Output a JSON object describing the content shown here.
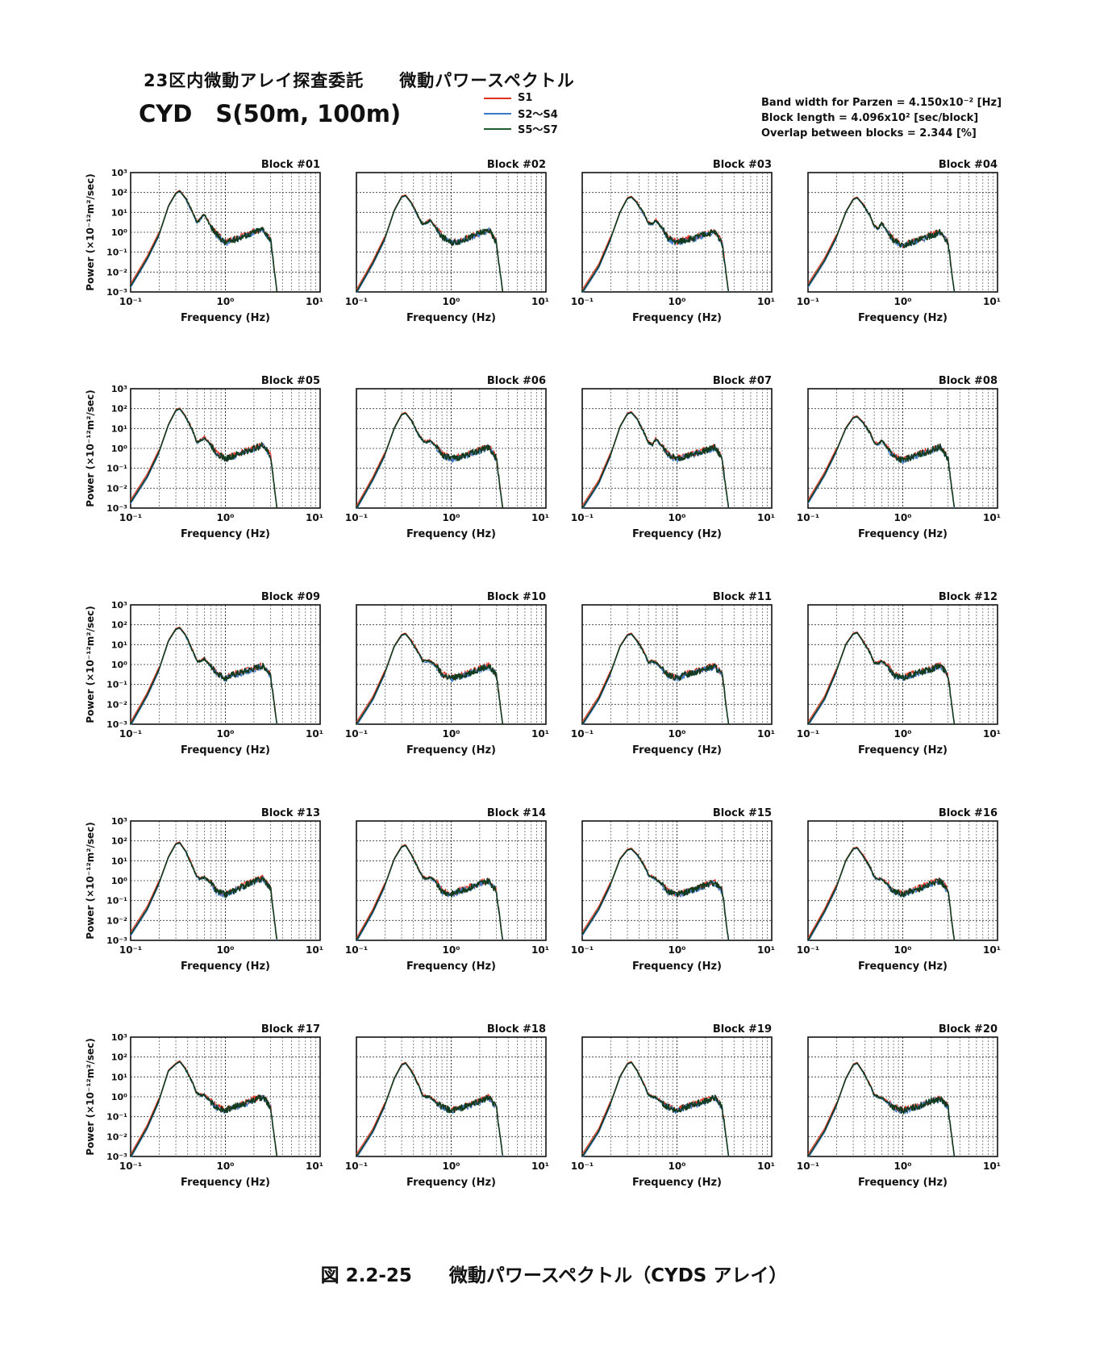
{
  "header": {
    "title": "23区内微動アレイ探査委託　　微動パワースペクトル",
    "subtitle": "CYD　S(50m, 100m)"
  },
  "legend": [
    {
      "label": "S1",
      "color": "#e03020"
    },
    {
      "label": "S2～S4",
      "color": "#3a78c8"
    },
    {
      "label": "S5～S7",
      "color": "#1e5c2e"
    }
  ],
  "params": {
    "band_width": "Band width for Parzen = 4.150x10⁻² [Hz]",
    "block_length": "Block length = 4.096x10² [sec/block]",
    "overlap": "Overlap between blocks = 2.344 [%]"
  },
  "caption": "図 2.2-25　　微動パワースペクトル（CYDS アレイ）",
  "chart_data": {
    "type": "line",
    "xscale": "log",
    "yscale": "log",
    "xlabel": "Frequency (Hz)",
    "ylabel": "Power (×10⁻¹²m²/sec)",
    "xlim": [
      0.1,
      10
    ],
    "ylim": [
      0.001,
      1000
    ],
    "x_ticks": [
      "10⁻¹",
      "10⁰",
      "10¹"
    ],
    "y_ticks": [
      "10³",
      "10²",
      "10¹",
      "10⁰",
      "10⁻¹",
      "10⁻²",
      "10⁻³"
    ],
    "grid": true,
    "series_names": [
      "S1",
      "S2～S4",
      "S5～S7"
    ],
    "x": [
      0.1,
      0.15,
      0.2,
      0.25,
      0.3,
      0.33,
      0.38,
      0.45,
      0.5,
      0.55,
      0.6,
      0.7,
      0.8,
      1.0,
      1.2,
      1.5,
      2.0,
      2.5,
      3.0,
      3.5
    ],
    "blocks": [
      {
        "label": "Block #01",
        "power": [
          0.002,
          0.05,
          0.8,
          20,
          90,
          120,
          50,
          10,
          3,
          5,
          8,
          2,
          0.8,
          0.3,
          0.4,
          0.6,
          1.0,
          1.5,
          0.4,
          0.0011
        ]
      },
      {
        "label": "Block #02",
        "power": [
          0.001,
          0.03,
          0.5,
          12,
          60,
          70,
          30,
          6,
          2.5,
          3,
          4,
          1.5,
          0.6,
          0.3,
          0.35,
          0.5,
          0.9,
          1.3,
          0.3,
          0.001
        ]
      },
      {
        "label": "Block #03",
        "power": [
          0.001,
          0.02,
          0.5,
          10,
          50,
          60,
          30,
          8,
          3,
          2.5,
          4,
          1.5,
          0.5,
          0.3,
          0.4,
          0.5,
          0.8,
          1.0,
          0.3,
          0.001
        ]
      },
      {
        "label": "Block #04",
        "power": [
          0.002,
          0.04,
          0.6,
          10,
          45,
          55,
          25,
          7,
          2,
          1.5,
          3,
          0.9,
          0.4,
          0.2,
          0.3,
          0.4,
          0.7,
          1.0,
          0.3,
          0.001
        ]
      },
      {
        "label": "Block #05",
        "power": [
          0.002,
          0.04,
          0.7,
          15,
          80,
          100,
          40,
          8,
          2,
          2.5,
          3.5,
          1.5,
          0.6,
          0.3,
          0.4,
          0.6,
          1.0,
          1.5,
          0.4,
          0.001
        ]
      },
      {
        "label": "Block #06",
        "power": [
          0.001,
          0.03,
          0.5,
          10,
          50,
          60,
          25,
          5,
          2.5,
          2,
          2.5,
          1.2,
          0.5,
          0.3,
          0.35,
          0.5,
          0.8,
          1.2,
          0.3,
          0.001
        ]
      },
      {
        "label": "Block #07",
        "power": [
          0.001,
          0.02,
          0.5,
          12,
          55,
          65,
          30,
          6,
          2,
          1.5,
          3,
          1.2,
          0.5,
          0.3,
          0.4,
          0.5,
          0.8,
          1.1,
          0.3,
          0.001
        ]
      },
      {
        "label": "Block #08",
        "power": [
          0.002,
          0.05,
          0.8,
          10,
          35,
          40,
          20,
          6,
          2,
          1.5,
          2.5,
          1.0,
          0.4,
          0.25,
          0.35,
          0.5,
          0.8,
          1.2,
          0.3,
          0.001
        ]
      },
      {
        "label": "Block #09",
        "power": [
          0.001,
          0.03,
          0.6,
          15,
          60,
          70,
          30,
          5,
          1.5,
          1.5,
          2,
          0.8,
          0.4,
          0.2,
          0.3,
          0.4,
          0.6,
          0.9,
          0.3,
          0.001
        ]
      },
      {
        "label": "Block #10",
        "power": [
          0.001,
          0.02,
          0.4,
          8,
          30,
          35,
          15,
          4,
          1.5,
          1.5,
          1.5,
          0.8,
          0.3,
          0.2,
          0.25,
          0.35,
          0.6,
          0.8,
          0.3,
          0.001
        ]
      },
      {
        "label": "Block #11",
        "power": [
          0.001,
          0.02,
          0.4,
          8,
          30,
          35,
          15,
          4,
          1.2,
          1.5,
          1.2,
          0.6,
          0.3,
          0.2,
          0.3,
          0.4,
          0.6,
          0.8,
          0.3,
          0.001
        ]
      },
      {
        "label": "Block #12",
        "power": [
          0.001,
          0.02,
          0.5,
          10,
          35,
          40,
          15,
          4,
          1.2,
          1.2,
          1.5,
          0.8,
          0.3,
          0.2,
          0.3,
          0.4,
          0.6,
          0.9,
          0.3,
          0.001
        ]
      },
      {
        "label": "Block #13",
        "power": [
          0.002,
          0.04,
          0.8,
          15,
          70,
          80,
          30,
          5,
          1.5,
          1.2,
          1.5,
          0.8,
          0.3,
          0.2,
          0.3,
          0.5,
          0.9,
          1.3,
          0.4,
          0.001
        ]
      },
      {
        "label": "Block #14",
        "power": [
          0.001,
          0.03,
          0.6,
          12,
          50,
          60,
          20,
          4,
          1.5,
          1.2,
          1.5,
          0.8,
          0.3,
          0.2,
          0.3,
          0.4,
          0.7,
          1.0,
          0.3,
          0.001
        ]
      },
      {
        "label": "Block #15",
        "power": [
          0.002,
          0.04,
          0.7,
          12,
          35,
          40,
          20,
          6,
          2,
          1.5,
          1.2,
          0.6,
          0.3,
          0.2,
          0.25,
          0.35,
          0.6,
          0.8,
          0.3,
          0.001
        ]
      },
      {
        "label": "Block #16",
        "power": [
          0.001,
          0.03,
          0.5,
          10,
          40,
          45,
          18,
          5,
          1.5,
          1.2,
          1.2,
          0.6,
          0.3,
          0.2,
          0.3,
          0.4,
          0.7,
          1.0,
          0.3,
          0.001
        ]
      },
      {
        "label": "Block #17",
        "power": [
          0.001,
          0.03,
          0.7,
          20,
          45,
          60,
          25,
          5,
          1.5,
          1.2,
          1.2,
          0.6,
          0.3,
          0.2,
          0.3,
          0.4,
          0.7,
          1.0,
          0.3,
          0.001
        ]
      },
      {
        "label": "Block #18",
        "power": [
          0.001,
          0.02,
          0.4,
          8,
          40,
          50,
          20,
          4,
          1.2,
          1.0,
          1.0,
          0.5,
          0.3,
          0.2,
          0.25,
          0.35,
          0.6,
          0.9,
          0.3,
          0.001
        ]
      },
      {
        "label": "Block #19",
        "power": [
          0.001,
          0.02,
          0.5,
          10,
          45,
          55,
          20,
          4,
          1.2,
          1.0,
          0.9,
          0.5,
          0.3,
          0.2,
          0.3,
          0.4,
          0.6,
          0.9,
          0.3,
          0.001
        ]
      },
      {
        "label": "Block #20",
        "power": [
          0.001,
          0.02,
          0.4,
          8,
          40,
          50,
          18,
          4,
          1.2,
          1.0,
          0.9,
          0.5,
          0.3,
          0.2,
          0.25,
          0.35,
          0.6,
          0.8,
          0.3,
          0.001
        ]
      }
    ]
  }
}
